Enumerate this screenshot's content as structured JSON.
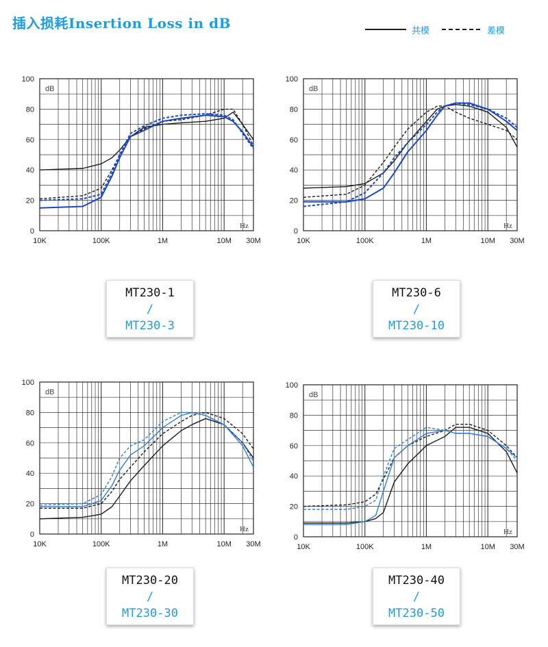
{
  "header": {
    "title": "插入损耗Insertion Loss in dB",
    "legend": {
      "solid_label": "共模",
      "dashed_label": "差模"
    }
  },
  "colors": {
    "accent": "#1a9ee0",
    "common_mode": "#1a1a1a",
    "blue_series": "#1848c8",
    "light_blue_series": "#2a7de0"
  },
  "panels": [
    {
      "model_a": "MT230-1",
      "separator": "/",
      "model_b": "MT230-3"
    },
    {
      "model_a": "MT230-6",
      "separator": "/",
      "model_b": "MT230-10"
    },
    {
      "model_a": "MT230-20",
      "separator": "/",
      "model_b": "MT230-30"
    },
    {
      "model_a": "MT230-40",
      "separator": "/",
      "model_b": "MT230-50"
    }
  ],
  "chart_data": [
    {
      "type": "line",
      "x_scale": "log",
      "xlim": [
        10000,
        30000000
      ],
      "ylim": [
        0,
        100
      ],
      "ylabel": "dB",
      "xlabel": "Hz",
      "x_ticks": [
        "10K",
        "100K",
        "1M",
        "10M",
        "30M"
      ],
      "y_ticks": [
        "0",
        "20",
        "40",
        "60",
        "80",
        "100"
      ],
      "grid": true,
      "series": [
        {
          "style": "solid",
          "color": "#1a1a1a",
          "x": [
            10000,
            50000,
            100000,
            150000,
            200000,
            300000,
            500000,
            1000000,
            2000000,
            5000000,
            10000000,
            14000000,
            20000000,
            30000000
          ],
          "y": [
            40,
            41,
            44,
            48,
            53,
            62,
            68,
            70,
            71,
            72,
            74,
            78,
            70,
            60
          ]
        },
        {
          "style": "dashed",
          "color": "#1a1a1a",
          "x": [
            10000,
            50000,
            100000,
            150000,
            200000,
            300000,
            500000,
            1000000,
            2000000,
            5000000,
            10000000,
            14000000,
            20000000,
            30000000
          ],
          "y": [
            21,
            23,
            28,
            40,
            50,
            62,
            67,
            72,
            73,
            76,
            80,
            80,
            70,
            56
          ]
        },
        {
          "style": "solid",
          "color": "#1848c8",
          "x": [
            10000,
            50000,
            100000,
            150000,
            200000,
            300000,
            500000,
            1000000,
            2000000,
            5000000,
            10000000,
            14000000,
            20000000,
            30000000
          ],
          "y": [
            15,
            16,
            22,
            36,
            48,
            62,
            66,
            72,
            74,
            76,
            75,
            72,
            65,
            55
          ]
        },
        {
          "style": "dashed",
          "color": "#1848c8",
          "x": [
            10000,
            50000,
            100000,
            150000,
            200000,
            300000,
            500000,
            1000000,
            2000000,
            5000000,
            10000000,
            14000000,
            20000000,
            30000000
          ],
          "y": [
            20,
            21,
            24,
            38,
            50,
            64,
            69,
            74,
            76,
            77,
            76,
            73,
            64,
            54
          ]
        }
      ]
    },
    {
      "type": "line",
      "x_scale": "log",
      "xlim": [
        10000,
        30000000
      ],
      "ylim": [
        0,
        100
      ],
      "ylabel": "dB",
      "xlabel": "Hz",
      "x_ticks": [
        "10K",
        "100K",
        "1M",
        "10M",
        "30M"
      ],
      "y_ticks": [
        "0",
        "20",
        "40",
        "60",
        "80",
        "100"
      ],
      "grid": true,
      "series": [
        {
          "style": "solid",
          "color": "#1a1a1a",
          "x": [
            10000,
            50000,
            100000,
            200000,
            300000,
            500000,
            1000000,
            1500000,
            2000000,
            3000000,
            5000000,
            10000000,
            20000000,
            30000000
          ],
          "y": [
            28,
            29,
            31,
            38,
            46,
            58,
            72,
            80,
            82,
            83,
            82,
            78,
            68,
            55
          ]
        },
        {
          "style": "dashed",
          "color": "#1a1a1a",
          "x": [
            10000,
            50000,
            100000,
            200000,
            300000,
            500000,
            1000000,
            1500000,
            2000000,
            3000000,
            5000000,
            10000000,
            20000000,
            30000000
          ],
          "y": [
            22,
            24,
            30,
            45,
            55,
            67,
            78,
            82,
            82,
            78,
            74,
            70,
            66,
            60
          ]
        },
        {
          "style": "solid",
          "color": "#1848c8",
          "x": [
            10000,
            50000,
            100000,
            200000,
            300000,
            500000,
            1000000,
            1500000,
            2000000,
            3000000,
            5000000,
            10000000,
            20000000,
            30000000
          ],
          "y": [
            19,
            19,
            21,
            28,
            38,
            52,
            66,
            76,
            82,
            84,
            84,
            80,
            72,
            66
          ]
        },
        {
          "style": "dashed",
          "color": "#1848c8",
          "x": [
            10000,
            50000,
            100000,
            200000,
            300000,
            500000,
            1000000,
            1500000,
            2000000,
            3000000,
            5000000,
            10000000,
            20000000,
            30000000
          ],
          "y": [
            16,
            19,
            25,
            38,
            48,
            58,
            70,
            78,
            82,
            84,
            83,
            80,
            74,
            68
          ]
        }
      ]
    },
    {
      "type": "line",
      "x_scale": "log",
      "xlim": [
        10000,
        30000000
      ],
      "ylim": [
        0,
        100
      ],
      "ylabel": "dB",
      "xlabel": "Hz",
      "x_ticks": [
        "10K",
        "100K",
        "1M",
        "10M",
        "30M"
      ],
      "y_ticks": [
        "0",
        "20",
        "40",
        "60",
        "80",
        "100"
      ],
      "grid": true,
      "series": [
        {
          "style": "solid",
          "color": "#1a1a1a",
          "x": [
            10000,
            50000,
            100000,
            150000,
            200000,
            300000,
            500000,
            1000000,
            2000000,
            3000000,
            5000000,
            10000000,
            20000000,
            30000000
          ],
          "y": [
            10,
            11,
            13,
            18,
            25,
            35,
            45,
            58,
            68,
            72,
            76,
            72,
            60,
            50
          ]
        },
        {
          "style": "dashed",
          "color": "#1a1a1a",
          "x": [
            10000,
            50000,
            100000,
            150000,
            200000,
            300000,
            500000,
            1000000,
            2000000,
            3000000,
            5000000,
            10000000,
            20000000,
            30000000
          ],
          "y": [
            17,
            17,
            20,
            28,
            36,
            44,
            54,
            66,
            74,
            78,
            80,
            76,
            66,
            56
          ]
        },
        {
          "style": "solid",
          "color": "#2a7de0",
          "x": [
            10000,
            50000,
            100000,
            150000,
            200000,
            300000,
            500000,
            1000000,
            2000000,
            3000000,
            5000000,
            10000000,
            20000000,
            30000000
          ],
          "y": [
            18,
            18,
            22,
            32,
            42,
            52,
            58,
            70,
            78,
            80,
            78,
            72,
            58,
            44
          ]
        },
        {
          "style": "dashed",
          "color": "#2a7de0",
          "x": [
            10000,
            50000,
            100000,
            150000,
            200000,
            300000,
            500000,
            1000000,
            2000000,
            3000000,
            5000000,
            10000000,
            20000000,
            30000000
          ],
          "y": [
            19,
            20,
            26,
            38,
            50,
            58,
            62,
            74,
            80,
            80,
            78,
            72,
            60,
            48
          ]
        }
      ]
    },
    {
      "type": "line",
      "x_scale": "log",
      "xlim": [
        10000,
        30000000
      ],
      "ylim": [
        0,
        100
      ],
      "ylabel": "dB",
      "xlabel": "Hz",
      "x_ticks": [
        "10K",
        "100K",
        "1M",
        "10M",
        "30M"
      ],
      "y_ticks": [
        "0",
        "20",
        "40",
        "60",
        "80",
        "100"
      ],
      "grid": true,
      "series": [
        {
          "style": "solid",
          "color": "#1a1a1a",
          "x": [
            10000,
            50000,
            100000,
            150000,
            200000,
            300000,
            500000,
            1000000,
            2000000,
            3000000,
            5000000,
            10000000,
            20000000,
            30000000
          ],
          "y": [
            9,
            9,
            10,
            12,
            16,
            36,
            48,
            60,
            66,
            72,
            72,
            68,
            56,
            42
          ]
        },
        {
          "style": "dashed",
          "color": "#1a1a1a",
          "x": [
            10000,
            50000,
            100000,
            150000,
            200000,
            300000,
            500000,
            1000000,
            2000000,
            3000000,
            5000000,
            10000000,
            20000000,
            30000000
          ],
          "y": [
            20,
            21,
            23,
            28,
            38,
            52,
            60,
            66,
            70,
            74,
            74,
            70,
            60,
            52
          ]
        },
        {
          "style": "solid",
          "color": "#2a7de0",
          "x": [
            10000,
            50000,
            100000,
            150000,
            200000,
            300000,
            500000,
            1000000,
            2000000,
            3000000,
            5000000,
            10000000,
            20000000,
            30000000
          ],
          "y": [
            8,
            8,
            10,
            14,
            30,
            52,
            60,
            68,
            70,
            68,
            68,
            66,
            58,
            52
          ]
        },
        {
          "style": "dashed",
          "color": "#2a7de0",
          "x": [
            10000,
            50000,
            100000,
            150000,
            200000,
            300000,
            500000,
            1000000,
            2000000,
            3000000,
            5000000,
            10000000,
            20000000,
            30000000
          ],
          "y": [
            18,
            18,
            20,
            24,
            40,
            58,
            64,
            72,
            70,
            68,
            68,
            66,
            58,
            50
          ]
        }
      ]
    }
  ]
}
